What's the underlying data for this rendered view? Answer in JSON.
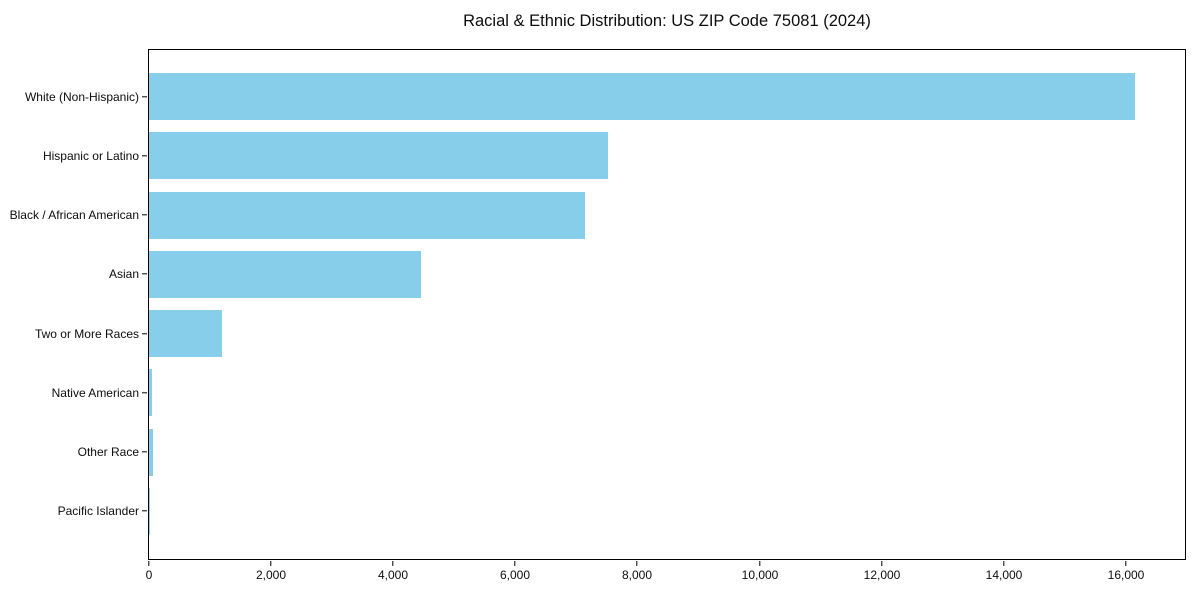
{
  "figure": {
    "title": "Racial & Ethnic Distribution: US ZIP Code 75081 (2024)"
  },
  "chart_data": {
    "type": "bar",
    "orientation": "horizontal",
    "title": "Racial & Ethnic Distribution: US ZIP Code 75081 (2024)",
    "categories": [
      "White (Non-Hispanic)",
      "Hispanic or Latino",
      "Black / African American",
      "Asian",
      "Two or More Races",
      "Native American",
      "Other Race",
      "Pacific Islander"
    ],
    "values": [
      16145,
      7525,
      7135,
      4455,
      1190,
      50,
      70,
      15
    ],
    "bar_color": "#87CEEB",
    "xlabel": "",
    "ylabel": "",
    "xlim": [
      0,
      16950
    ],
    "xticks": [
      0,
      2000,
      4000,
      6000,
      8000,
      10000,
      12000,
      14000,
      16000
    ],
    "xtick_labels": [
      "0",
      "2,000",
      "4,000",
      "6,000",
      "8,000",
      "10,000",
      "12,000",
      "14,000",
      "16,000"
    ],
    "grid": false,
    "legend": null
  }
}
